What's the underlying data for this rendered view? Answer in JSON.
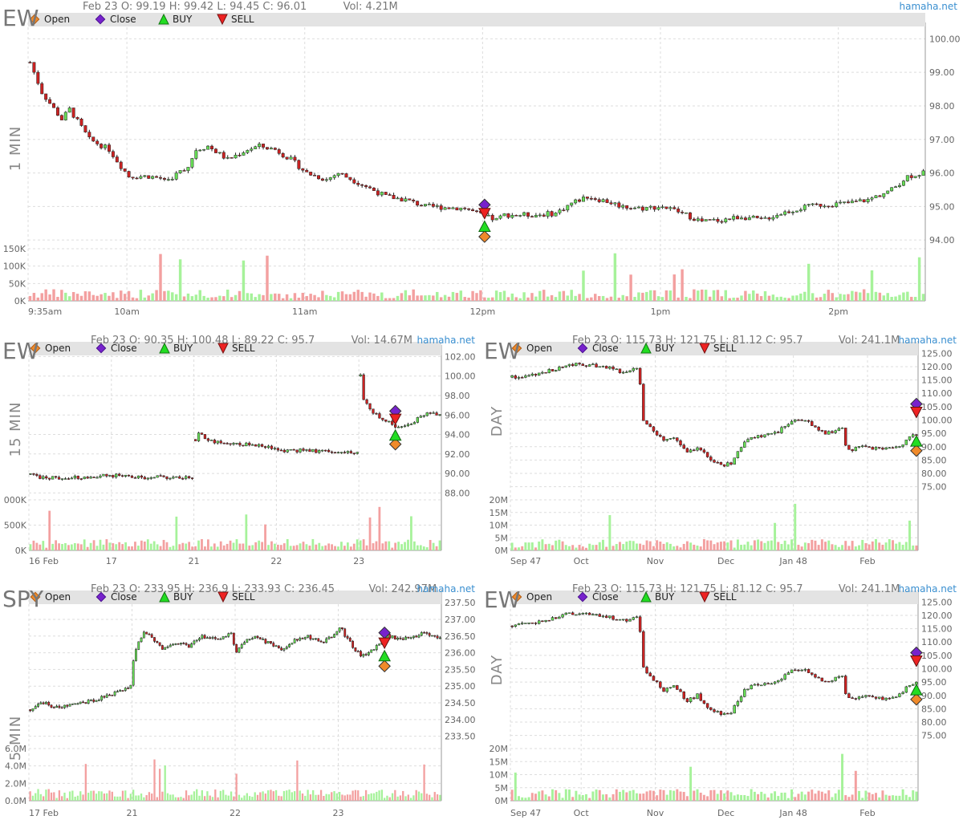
{
  "brand": "hamaha.net",
  "legend": [
    "Open",
    "Close",
    "BUY",
    "SELL"
  ],
  "colors": {
    "up": "#66dd55",
    "down": "#cc2222",
    "vol_up": "#a6f29a",
    "vol_down": "#f3a0a0",
    "open": "#f08a2a",
    "close": "#7722cc",
    "buy": "#22dd22",
    "sell": "#ee2222",
    "grid": "#dddddd",
    "legend_bar": "#e3e3e3"
  },
  "chart_data": [
    {
      "id": "p1",
      "type": "candlestick",
      "symbol": "EW",
      "period": "1 MIN",
      "ohlc": "Feb 23 O: 99.19 H: 99.42 L: 94.45 C: 96.01",
      "vol": "Vol: 4.21M",
      "price_ticks": [
        "100.00",
        "99.00",
        "98.00",
        "97.00",
        "96.00",
        "95.00",
        "94.00"
      ],
      "ylim": [
        93.98,
        100.2
      ],
      "vol_ticks": [
        "150K",
        "100K",
        "50K",
        "0K"
      ],
      "vol_max": 160000,
      "x_labels": [
        "9:35am",
        "10am",
        "11am",
        "12pm",
        "1pm",
        "2pm"
      ],
      "x_label_pos": [
        0,
        25,
        70,
        115,
        160,
        205
      ],
      "n": 227,
      "path": [
        [
          0,
          99.3
        ],
        [
          3,
          98.4
        ],
        [
          8,
          97.6
        ],
        [
          10,
          97.9
        ],
        [
          15,
          97.0
        ],
        [
          20,
          96.7
        ],
        [
          23,
          96.2
        ],
        [
          25,
          95.9
        ],
        [
          30,
          95.9
        ],
        [
          35,
          95.8
        ],
        [
          40,
          96.2
        ],
        [
          42,
          96.7
        ],
        [
          45,
          96.8
        ],
        [
          50,
          96.4
        ],
        [
          55,
          96.7
        ],
        [
          58,
          96.8
        ],
        [
          62,
          96.7
        ],
        [
          66,
          96.4
        ],
        [
          70,
          96.0
        ],
        [
          75,
          95.8
        ],
        [
          78,
          96.0
        ],
        [
          85,
          95.6
        ],
        [
          90,
          95.3
        ],
        [
          95,
          95.2
        ],
        [
          100,
          95.0
        ],
        [
          110,
          94.95
        ],
        [
          115,
          94.7
        ],
        [
          118,
          94.6
        ],
        [
          120,
          94.75
        ],
        [
          128,
          94.75
        ],
        [
          133,
          94.8
        ],
        [
          137,
          95.1
        ],
        [
          141,
          95.3
        ],
        [
          146,
          95.15
        ],
        [
          150,
          95.0
        ],
        [
          155,
          94.95
        ],
        [
          160,
          95.0
        ],
        [
          165,
          94.8
        ],
        [
          170,
          94.55
        ],
        [
          175,
          94.6
        ],
        [
          180,
          94.7
        ],
        [
          185,
          94.6
        ],
        [
          190,
          94.8
        ],
        [
          195,
          94.95
        ],
        [
          200,
          95.05
        ],
        [
          207,
          95.1
        ],
        [
          212,
          95.2
        ],
        [
          218,
          95.5
        ],
        [
          222,
          95.9
        ],
        [
          226,
          96.0
        ]
      ],
      "signals": {
        "x": 115,
        "open": 94.1,
        "close": 95.05,
        "buy": 94.4,
        "sell": 94.8
      }
    },
    {
      "id": "p2",
      "type": "candlestick",
      "symbol": "EW",
      "period": "15 MIN",
      "ohlc": "Feb 23 O: 90.35 H: 100.48 L: 89.22 C: 95.7",
      "vol": "Vol: 14.67M",
      "price_ticks": [
        "102.00",
        "100.00",
        "98.00",
        "96.00",
        "94.00",
        "92.00",
        "90.00",
        "88.00"
      ],
      "ylim": [
        87.7,
        102.2
      ],
      "vol_ticks": [
        "000K",
        "500K",
        "0K"
      ],
      "vol_max": 1000000,
      "x_labels": [
        "16 Feb",
        "17",
        "21",
        "22",
        "23"
      ],
      "x_label_pos": [
        0,
        26,
        52,
        78,
        104
      ],
      "n": 130,
      "gap_segments": [
        [
          0,
          51,
          89.7,
          89.7
        ],
        [
          52,
          103,
          93.6,
          92.4
        ],
        [
          104,
          129,
          99.0,
          95.7
        ]
      ],
      "path": [
        [
          0,
          89.9
        ],
        [
          3,
          89.6
        ],
        [
          10,
          89.5
        ],
        [
          20,
          89.7
        ],
        [
          26,
          89.8
        ],
        [
          35,
          89.6
        ],
        [
          51,
          89.6
        ],
        [
          52,
          93.5
        ],
        [
          53,
          94.0
        ],
        [
          58,
          93.2
        ],
        [
          66,
          93.0
        ],
        [
          75,
          92.8
        ],
        [
          78,
          92.4
        ],
        [
          90,
          92.3
        ],
        [
          103,
          92.2
        ],
        [
          104,
          100.0
        ],
        [
          105,
          97.5
        ],
        [
          108,
          96.2
        ],
        [
          112,
          95.5
        ],
        [
          115,
          94.8
        ],
        [
          120,
          95.0
        ],
        [
          123,
          95.9
        ],
        [
          126,
          96.3
        ],
        [
          129,
          95.9
        ]
      ],
      "signals": {
        "x": 115,
        "open": 93.0,
        "close": 96.4,
        "buy": 93.9,
        "sell": 95.6
      }
    },
    {
      "id": "p3",
      "type": "candlestick",
      "symbol": "EW",
      "period": "DAY",
      "ohlc": "Feb 23 O: 115.73 H: 121.75 L: 81.12 C: 95.7",
      "vol": "Vol: 241.1M",
      "price_ticks": [
        "125.00",
        "120.00",
        "115.00",
        "110.00",
        "105.00",
        "100.00",
        "95.00",
        "90.00",
        "85.00",
        "80.00",
        "75.00"
      ],
      "ylim": [
        72.5,
        126.0
      ],
      "vol_ticks": [
        "20M",
        "15M",
        "10M",
        "5M",
        "0M"
      ],
      "vol_max": 22000000,
      "x_labels": [
        "Sep 47",
        "Oct",
        "Nov",
        "Dec",
        "Jan 48",
        "Feb"
      ],
      "x_label_pos": [
        0,
        21,
        43,
        64,
        84,
        106
      ],
      "n": 121,
      "path": [
        [
          0,
          116
        ],
        [
          5,
          117
        ],
        [
          10,
          118
        ],
        [
          15,
          120
        ],
        [
          20,
          121
        ],
        [
          27,
          120
        ],
        [
          33,
          118
        ],
        [
          37,
          119
        ],
        [
          38,
          114
        ],
        [
          39,
          100
        ],
        [
          41,
          97
        ],
        [
          45,
          92
        ],
        [
          48,
          94
        ],
        [
          52,
          88
        ],
        [
          55,
          90
        ],
        [
          58,
          86
        ],
        [
          62,
          83
        ],
        [
          65,
          84
        ],
        [
          69,
          92
        ],
        [
          72,
          94
        ],
        [
          78,
          95
        ],
        [
          84,
          100
        ],
        [
          88,
          99
        ],
        [
          93,
          95
        ],
        [
          98,
          97
        ],
        [
          99,
          90
        ],
        [
          101,
          89
        ],
        [
          105,
          90
        ],
        [
          110,
          89
        ],
        [
          115,
          90
        ],
        [
          118,
          94
        ],
        [
          120,
          95
        ]
      ],
      "signals": {
        "x": 120,
        "open": 88.5,
        "close": 106.0,
        "buy": 92.0,
        "sell": 103.0
      }
    },
    {
      "id": "p4",
      "type": "candlestick",
      "symbol": "SPY",
      "period": "5 MIN",
      "ohlc": "Feb 23 O: 233.95 H: 236.9 L: 233.93 C: 236.45",
      "vol": "Vol: 242.97M",
      "price_ticks": [
        "237.50",
        "237.00",
        "236.50",
        "236.00",
        "235.50",
        "235.00",
        "234.50",
        "234.00",
        "233.50"
      ],
      "ylim": [
        233.3,
        237.6
      ],
      "vol_ticks": [
        "6.0M",
        "4.0M",
        "2.0M",
        "0.0M"
      ],
      "vol_max": 6200000,
      "x_labels": [
        "17 Feb",
        "21",
        "22",
        "23"
      ],
      "x_label_pos": [
        0,
        39,
        78,
        117
      ],
      "n": 156,
      "path": [
        [
          0,
          234.3
        ],
        [
          5,
          234.5
        ],
        [
          10,
          234.35
        ],
        [
          15,
          234.45
        ],
        [
          20,
          234.5
        ],
        [
          25,
          234.6
        ],
        [
          30,
          234.75
        ],
        [
          36,
          234.9
        ],
        [
          38,
          235.0
        ],
        [
          39,
          235.8
        ],
        [
          41,
          236.3
        ],
        [
          43,
          236.6
        ],
        [
          46,
          236.45
        ],
        [
          50,
          236.1
        ],
        [
          55,
          236.3
        ],
        [
          60,
          236.2
        ],
        [
          65,
          236.5
        ],
        [
          70,
          236.4
        ],
        [
          76,
          236.6
        ],
        [
          78,
          236.0
        ],
        [
          80,
          236.3
        ],
        [
          85,
          236.5
        ],
        [
          90,
          236.3
        ],
        [
          95,
          236.1
        ],
        [
          100,
          236.4
        ],
        [
          105,
          236.5
        ],
        [
          110,
          236.3
        ],
        [
          115,
          236.5
        ],
        [
          117,
          236.8
        ],
        [
          120,
          236.4
        ],
        [
          125,
          235.9
        ],
        [
          130,
          236.1
        ],
        [
          135,
          236.5
        ],
        [
          140,
          236.4
        ],
        [
          145,
          236.5
        ],
        [
          150,
          236.6
        ],
        [
          155,
          236.4
        ]
      ],
      "signals": {
        "x": 134,
        "open": 235.6,
        "close": 236.6,
        "buy": 235.9,
        "sell": 236.3
      }
    },
    {
      "id": "p5",
      "type": "candlestick",
      "symbol": "EW",
      "period": "DAY",
      "ohlc": "Feb 23 O: 115.73 H: 121.75 L: 81.12 C: 95.7",
      "vol": "Vol: 241.1M",
      "price_ticks": [
        "125.00",
        "120.00",
        "115.00",
        "110.00",
        "105.00",
        "100.00",
        "95.00",
        "90.00",
        "85.00",
        "80.00",
        "75.00"
      ],
      "ylim": [
        72.5,
        126.0
      ],
      "vol_ticks": [
        "20M",
        "15M",
        "10M",
        "5M",
        "0M"
      ],
      "vol_max": 22000000,
      "x_labels": [
        "Sep 47",
        "Oct",
        "Nov",
        "Dec",
        "Jan 48",
        "Feb"
      ],
      "x_label_pos": [
        0,
        21,
        43,
        64,
        84,
        106
      ],
      "n": 121,
      "path": [
        [
          0,
          116
        ],
        [
          5,
          117
        ],
        [
          10,
          118
        ],
        [
          15,
          120
        ],
        [
          20,
          121
        ],
        [
          27,
          120
        ],
        [
          33,
          118
        ],
        [
          37,
          119
        ],
        [
          38,
          114
        ],
        [
          39,
          100
        ],
        [
          41,
          97
        ],
        [
          45,
          92
        ],
        [
          48,
          94
        ],
        [
          52,
          88
        ],
        [
          55,
          90
        ],
        [
          58,
          86
        ],
        [
          62,
          83
        ],
        [
          65,
          84
        ],
        [
          69,
          92
        ],
        [
          72,
          94
        ],
        [
          78,
          95
        ],
        [
          84,
          100
        ],
        [
          88,
          99
        ],
        [
          93,
          95
        ],
        [
          98,
          97
        ],
        [
          99,
          90
        ],
        [
          101,
          89
        ],
        [
          105,
          90
        ],
        [
          110,
          89
        ],
        [
          115,
          90
        ],
        [
          118,
          94
        ],
        [
          120,
          95
        ]
      ],
      "signals": {
        "x": 120,
        "open": 88.5,
        "close": 106.0,
        "buy": 92.0,
        "sell": 103.0
      }
    }
  ]
}
